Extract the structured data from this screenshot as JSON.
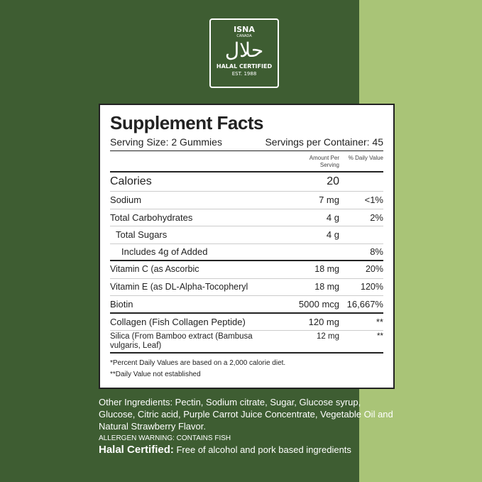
{
  "colors": {
    "dark_green": "#3e5d32",
    "light_green": "#a9c477"
  },
  "logo": {
    "isna": "ISNA",
    "canada": "CANADA",
    "arabic": "حلال",
    "certified": "HALAL CERTIFIED",
    "est": "EST. 1988"
  },
  "facts": {
    "title": "Supplement Facts",
    "serving_size": "Serving Size: 2 Gummies",
    "servings_per_container": "Servings per Container: 45",
    "col_amount": "Amount Per Serving",
    "col_dv": "% Daily Value",
    "rows": [
      {
        "name": "Calories",
        "amount": "20",
        "dv": ""
      },
      {
        "name": "Sodium",
        "amount": "7 mg",
        "dv": "<1%"
      },
      {
        "name": "Total Carbohydrates",
        "amount": "4 g",
        "dv": "2%"
      },
      {
        "name": "Total Sugars",
        "amount": "4 g",
        "dv": ""
      },
      {
        "name": "Includes 4g of Added",
        "amount": "",
        "dv": "8%"
      },
      {
        "name": "Vitamin C (as Ascorbic",
        "amount": "18 mg",
        "dv": "20%"
      },
      {
        "name": "Vitamin E (as DL-Alpha-Tocopheryl",
        "amount": "18 mg",
        "dv": "120%"
      },
      {
        "name": "Biotin",
        "amount": "5000 mcg",
        "dv": "16,667%"
      },
      {
        "name": "Collagen (Fish Collagen Peptide)",
        "amount": "120 mg",
        "dv": "**"
      },
      {
        "name": "Silica (From Bamboo extract (Bambusa vulgaris, Leaf)",
        "amount": "12 mg",
        "dv": "**"
      }
    ],
    "footnote1": "*Percent Daily Values are based on a 2,000 calorie diet.",
    "footnote2": "**Daily Value not established"
  },
  "other_ingredients": "Other Ingredients: Pectin, Sodium citrate, Sugar, Glucose syrup, Glucose, Citric acid, Purple Carrot Juice Concentrate, Vegetable Oil and Natural Strawberry Flavor.",
  "allergen": "ALLERGEN WARNING: CONTAINS FISH",
  "halal": {
    "label": "Halal Certified:",
    "text": " Free of alcohol and pork based ingredients"
  }
}
